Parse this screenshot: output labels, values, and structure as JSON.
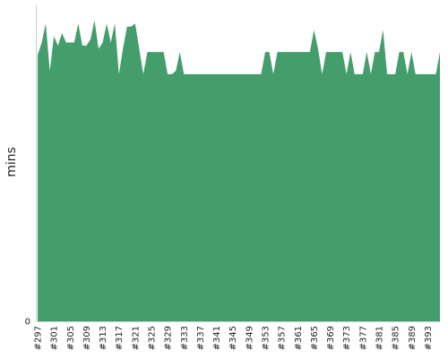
{
  "chart_data": {
    "type": "area",
    "ylabel": "mins",
    "xlabel": "",
    "title": "",
    "y_tick_labels": [
      "0"
    ],
    "ylim": [
      0,
      100
    ],
    "colors": {
      "area": "#449e6c",
      "axis": "#cccccc",
      "text": "#222222"
    },
    "grid": false,
    "series": [
      {
        "x": [
          297,
          298,
          299,
          300,
          301,
          302,
          303,
          304,
          305,
          306,
          307,
          308,
          309,
          310,
          311,
          312,
          313,
          314,
          315,
          316,
          317,
          318,
          319,
          320,
          321,
          322,
          323,
          324,
          325,
          326,
          327,
          328,
          329,
          330,
          331,
          332,
          333,
          334,
          335,
          336,
          337,
          338,
          339,
          340,
          341,
          342,
          343,
          344,
          345,
          346,
          347,
          348,
          349,
          350,
          351,
          352,
          353,
          354,
          355,
          356,
          357,
          358,
          359,
          360,
          361,
          362,
          363,
          364,
          365,
          366,
          367,
          368,
          369,
          370,
          371,
          372,
          373,
          374,
          375,
          376,
          377,
          378,
          379,
          380,
          381,
          382,
          383,
          384,
          385,
          386,
          387,
          388,
          389,
          390,
          391,
          392,
          393,
          394,
          395,
          396
        ],
        "values": [
          84,
          88,
          94,
          79,
          90,
          87,
          91,
          88,
          88,
          88,
          94,
          87,
          87,
          89,
          95,
          86,
          88,
          94,
          88,
          94,
          78,
          86,
          93,
          93,
          94,
          86,
          78,
          85,
          85,
          85,
          85,
          85,
          78,
          78,
          79,
          85,
          78,
          78,
          78,
          78,
          78,
          78,
          78,
          78,
          78,
          78,
          78,
          78,
          78,
          78,
          78,
          78,
          78,
          78,
          78,
          78,
          85,
          85,
          78,
          85,
          85,
          85,
          85,
          85,
          85,
          85,
          85,
          85,
          92,
          86,
          78,
          85,
          85,
          85,
          85,
          85,
          78,
          85,
          78,
          78,
          78,
          85,
          78,
          85,
          85,
          92,
          78,
          78,
          78,
          85,
          85,
          78,
          85,
          78,
          78,
          78,
          78,
          78,
          78,
          85
        ]
      }
    ],
    "x_tick_labels": [
      "#297",
      "#301",
      "#305",
      "#309",
      "#313",
      "#317",
      "#321",
      "#325",
      "#329",
      "#333",
      "#337",
      "#341",
      "#345",
      "#349",
      "#353",
      "#357",
      "#361",
      "#365",
      "#369",
      "#373",
      "#377",
      "#381",
      "#385",
      "#389",
      "#393"
    ],
    "x_tick_values": [
      297,
      301,
      305,
      309,
      313,
      317,
      321,
      325,
      329,
      333,
      337,
      341,
      345,
      349,
      353,
      357,
      361,
      365,
      369,
      373,
      377,
      381,
      385,
      389,
      393
    ]
  }
}
